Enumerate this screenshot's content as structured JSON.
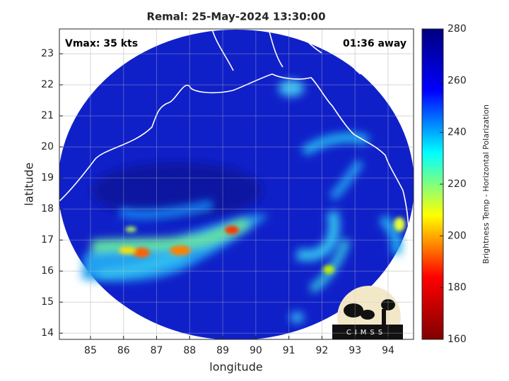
{
  "chart_data": {
    "type": "image",
    "title": "Remal: 25-May-2024 13:30:00",
    "annotations": [
      "Vmax: 35 kts",
      "01:36 away"
    ],
    "xlabel": "longitude",
    "ylabel": "latitude",
    "xlim": [
      84.06,
      94.77
    ],
    "ylim": [
      13.8,
      23.8
    ],
    "xticks": [
      85,
      86,
      87,
      88,
      89,
      90,
      91,
      92,
      93,
      94
    ],
    "yticks": [
      14,
      15,
      16,
      17,
      18,
      19,
      20,
      21,
      22,
      23
    ],
    "grid": true,
    "colorbar": {
      "label": "Brightness Temp - Horizontal Polarization",
      "lim": [
        160,
        280
      ],
      "ticks": [
        160,
        180,
        200,
        220,
        240,
        260,
        280
      ],
      "colormap": [
        "#800000",
        "#ff0000",
        "#ffff00",
        "#00ffff",
        "#0000ff",
        "#000080"
      ]
    },
    "logo": "CIMSS"
  }
}
